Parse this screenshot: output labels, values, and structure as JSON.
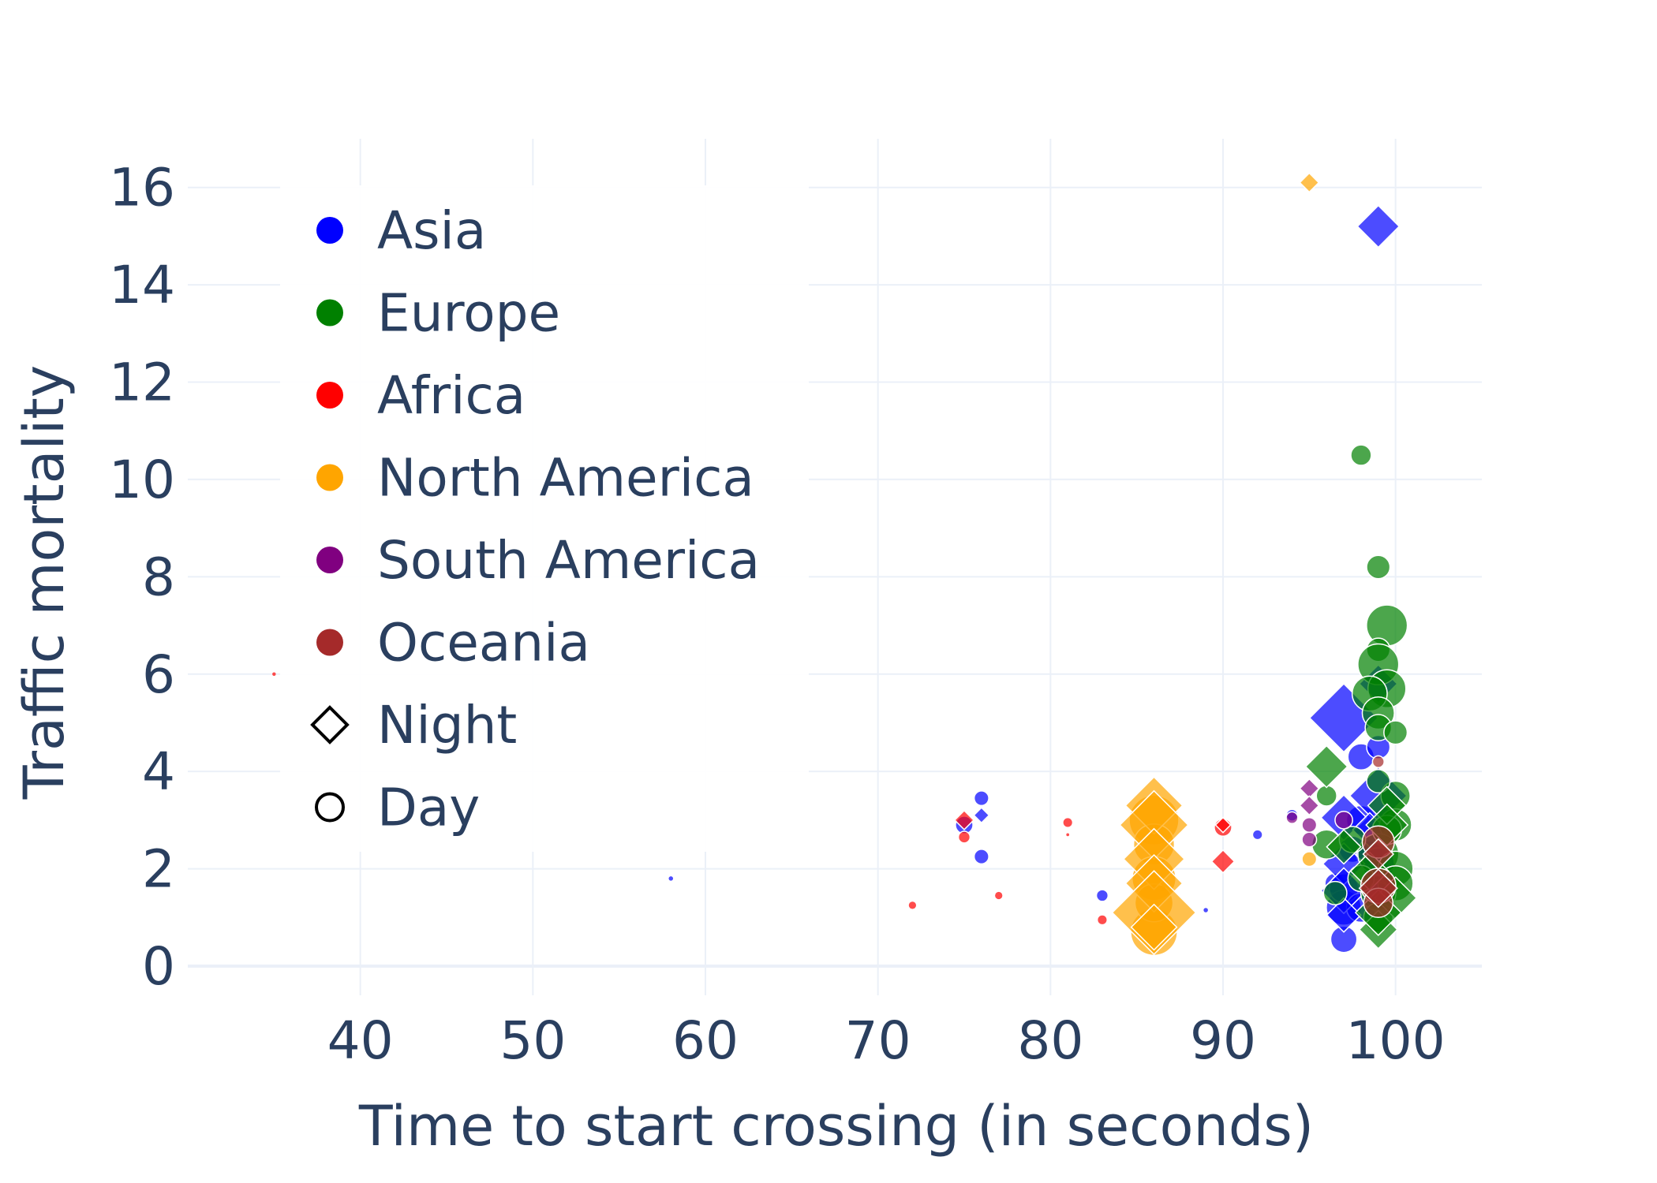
{
  "chart_data": {
    "type": "scatter",
    "title": "",
    "xlabel": "Time to start crossing (in seconds)",
    "ylabel": "Traffic mortality",
    "xlim": [
      30,
      105
    ],
    "ylim": [
      -0.6,
      17
    ],
    "xticks": [
      40,
      50,
      60,
      70,
      80,
      90,
      100
    ],
    "yticks": [
      0,
      2,
      4,
      6,
      8,
      10,
      12,
      14,
      16
    ],
    "grid": true,
    "legend_placement": "top-left",
    "marker_opacity": 0.7,
    "size_note": "marker size varies per point",
    "colors": {
      "Asia": "#0000ff",
      "Europe": "#008000",
      "Africa": "#ff0000",
      "North America": "#ffa500",
      "South America": "#800080",
      "Oceania": "#a52a2a",
      "grid": "#ebf0f8",
      "text": "#2a3f5f"
    },
    "legend": {
      "continents": [
        "Asia",
        "Europe",
        "Africa",
        "North America",
        "South America",
        "Oceania"
      ],
      "shapes": [
        {
          "label": "Night",
          "symbol": "diamond"
        },
        {
          "label": "Day",
          "symbol": "circle"
        }
      ]
    },
    "series": [
      {
        "name": "Asia",
        "symbol": "circle",
        "points": [
          [
            75,
            2.9,
            6
          ],
          [
            76,
            3.45,
            5
          ],
          [
            76,
            2.25,
            5
          ],
          [
            83,
            1.45,
            4
          ],
          [
            92,
            2.7,
            3
          ],
          [
            89,
            1.15,
            1.5
          ],
          [
            58,
            1.8,
            1.5
          ],
          [
            94,
            3.1,
            4
          ],
          [
            96.5,
            1.7,
            7
          ],
          [
            97,
            1.2,
            12
          ],
          [
            97,
            1.6,
            10
          ],
          [
            97,
            0.55,
            9
          ],
          [
            97.5,
            2.4,
            9
          ],
          [
            98,
            4.3,
            9
          ],
          [
            98,
            1.2,
            10
          ],
          [
            99,
            4.5,
            8
          ],
          [
            98.5,
            2.3,
            9
          ],
          [
            99,
            1.85,
            10
          ],
          [
            99,
            1.45,
            9
          ],
          [
            98,
            3.0,
            10
          ],
          [
            99,
            2.1,
            11
          ]
        ]
      },
      {
        "name": "Asia",
        "symbol": "diamond",
        "points": [
          [
            99,
            15.2,
            11
          ],
          [
            97,
            5.1,
            18
          ],
          [
            99,
            5.8,
            10
          ],
          [
            99,
            3.5,
            15
          ],
          [
            97,
            3.05,
            12
          ],
          [
            97,
            2.1,
            11
          ],
          [
            97,
            1.55,
            12
          ],
          [
            97,
            1.05,
            9
          ],
          [
            76,
            3.1,
            4
          ],
          [
            98.5,
            2.8,
            9
          ]
        ]
      },
      {
        "name": "Europe",
        "symbol": "circle",
        "points": [
          [
            98,
            10.5,
            7
          ],
          [
            99,
            8.2,
            8
          ],
          [
            99.5,
            7.0,
            14
          ],
          [
            99,
            6.5,
            8
          ],
          [
            99,
            6.2,
            14
          ],
          [
            99.5,
            5.7,
            13
          ],
          [
            98.5,
            5.6,
            12
          ],
          [
            99,
            5.2,
            11
          ],
          [
            99,
            4.9,
            9
          ],
          [
            100,
            4.8,
            8
          ],
          [
            100,
            3.5,
            10
          ],
          [
            96,
            3.5,
            7
          ],
          [
            99,
            3.8,
            8
          ],
          [
            100,
            2.9,
            11
          ],
          [
            96,
            2.5,
            10
          ],
          [
            99,
            2.3,
            14
          ],
          [
            100,
            2.0,
            12
          ],
          [
            97.5,
            2.6,
            9
          ],
          [
            100,
            1.7,
            12
          ],
          [
            99,
            1.5,
            12
          ],
          [
            96.5,
            1.5,
            8
          ],
          [
            99,
            1.0,
            10
          ],
          [
            99.5,
            2.8,
            10
          ],
          [
            98,
            1.8,
            9
          ]
        ]
      },
      {
        "name": "Europe",
        "symbol": "diamond",
        "points": [
          [
            96,
            4.1,
            11
          ],
          [
            99.5,
            3.3,
            10
          ],
          [
            99.5,
            2.9,
            11
          ],
          [
            100,
            1.4,
            11
          ],
          [
            99,
            0.75,
            10
          ],
          [
            99,
            1.1,
            12
          ],
          [
            97,
            2.45,
            9
          ],
          [
            98.5,
            1.95,
            10
          ]
        ]
      },
      {
        "name": "Africa",
        "symbol": "circle",
        "points": [
          [
            75,
            2.65,
            4
          ],
          [
            81,
            2.95,
            3
          ],
          [
            77,
            1.45,
            2.5
          ],
          [
            72,
            1.25,
            2.5
          ],
          [
            90,
            2.85,
            6
          ],
          [
            83,
            0.95,
            3
          ],
          [
            35,
            6.0,
            1.2
          ],
          [
            81,
            2.7,
            1
          ]
        ]
      },
      {
        "name": "Africa",
        "symbol": "diamond",
        "points": [
          [
            75,
            3.0,
            5
          ],
          [
            90,
            2.15,
            6
          ],
          [
            90,
            2.9,
            4
          ]
        ]
      },
      {
        "name": "North America",
        "symbol": "circle",
        "points": [
          [
            86,
            3.0,
            17
          ],
          [
            86,
            2.5,
            14
          ],
          [
            86,
            1.8,
            15
          ],
          [
            86,
            0.7,
            16
          ],
          [
            86,
            1.3,
            13
          ],
          [
            95,
            2.2,
            5
          ],
          [
            86.5,
            1.6,
            2
          ]
        ]
      },
      {
        "name": "North America",
        "symbol": "diamond",
        "points": [
          [
            95,
            16.1,
            5
          ],
          [
            86,
            3.3,
            15
          ],
          [
            86,
            2.9,
            18
          ],
          [
            86,
            2.2,
            16
          ],
          [
            86,
            1.7,
            15
          ],
          [
            86,
            1.1,
            22
          ],
          [
            86,
            0.8,
            12
          ]
        ]
      },
      {
        "name": "South America",
        "symbol": "circle",
        "points": [
          [
            95,
            2.9,
            5
          ],
          [
            95,
            2.6,
            5
          ],
          [
            97,
            3.0,
            6
          ],
          [
            94,
            3.05,
            4
          ]
        ]
      },
      {
        "name": "South America",
        "symbol": "diamond",
        "points": [
          [
            95,
            3.65,
            5
          ],
          [
            95,
            3.3,
            5
          ]
        ]
      },
      {
        "name": "Oceania",
        "symbol": "circle",
        "points": [
          [
            99,
            2.55,
            11
          ],
          [
            99,
            1.65,
            12
          ],
          [
            99,
            1.3,
            10
          ],
          [
            99,
            4.2,
            4
          ]
        ]
      },
      {
        "name": "Oceania",
        "symbol": "diamond",
        "points": [
          [
            99,
            1.6,
            10
          ],
          [
            99,
            2.3,
            8
          ]
        ]
      }
    ]
  }
}
